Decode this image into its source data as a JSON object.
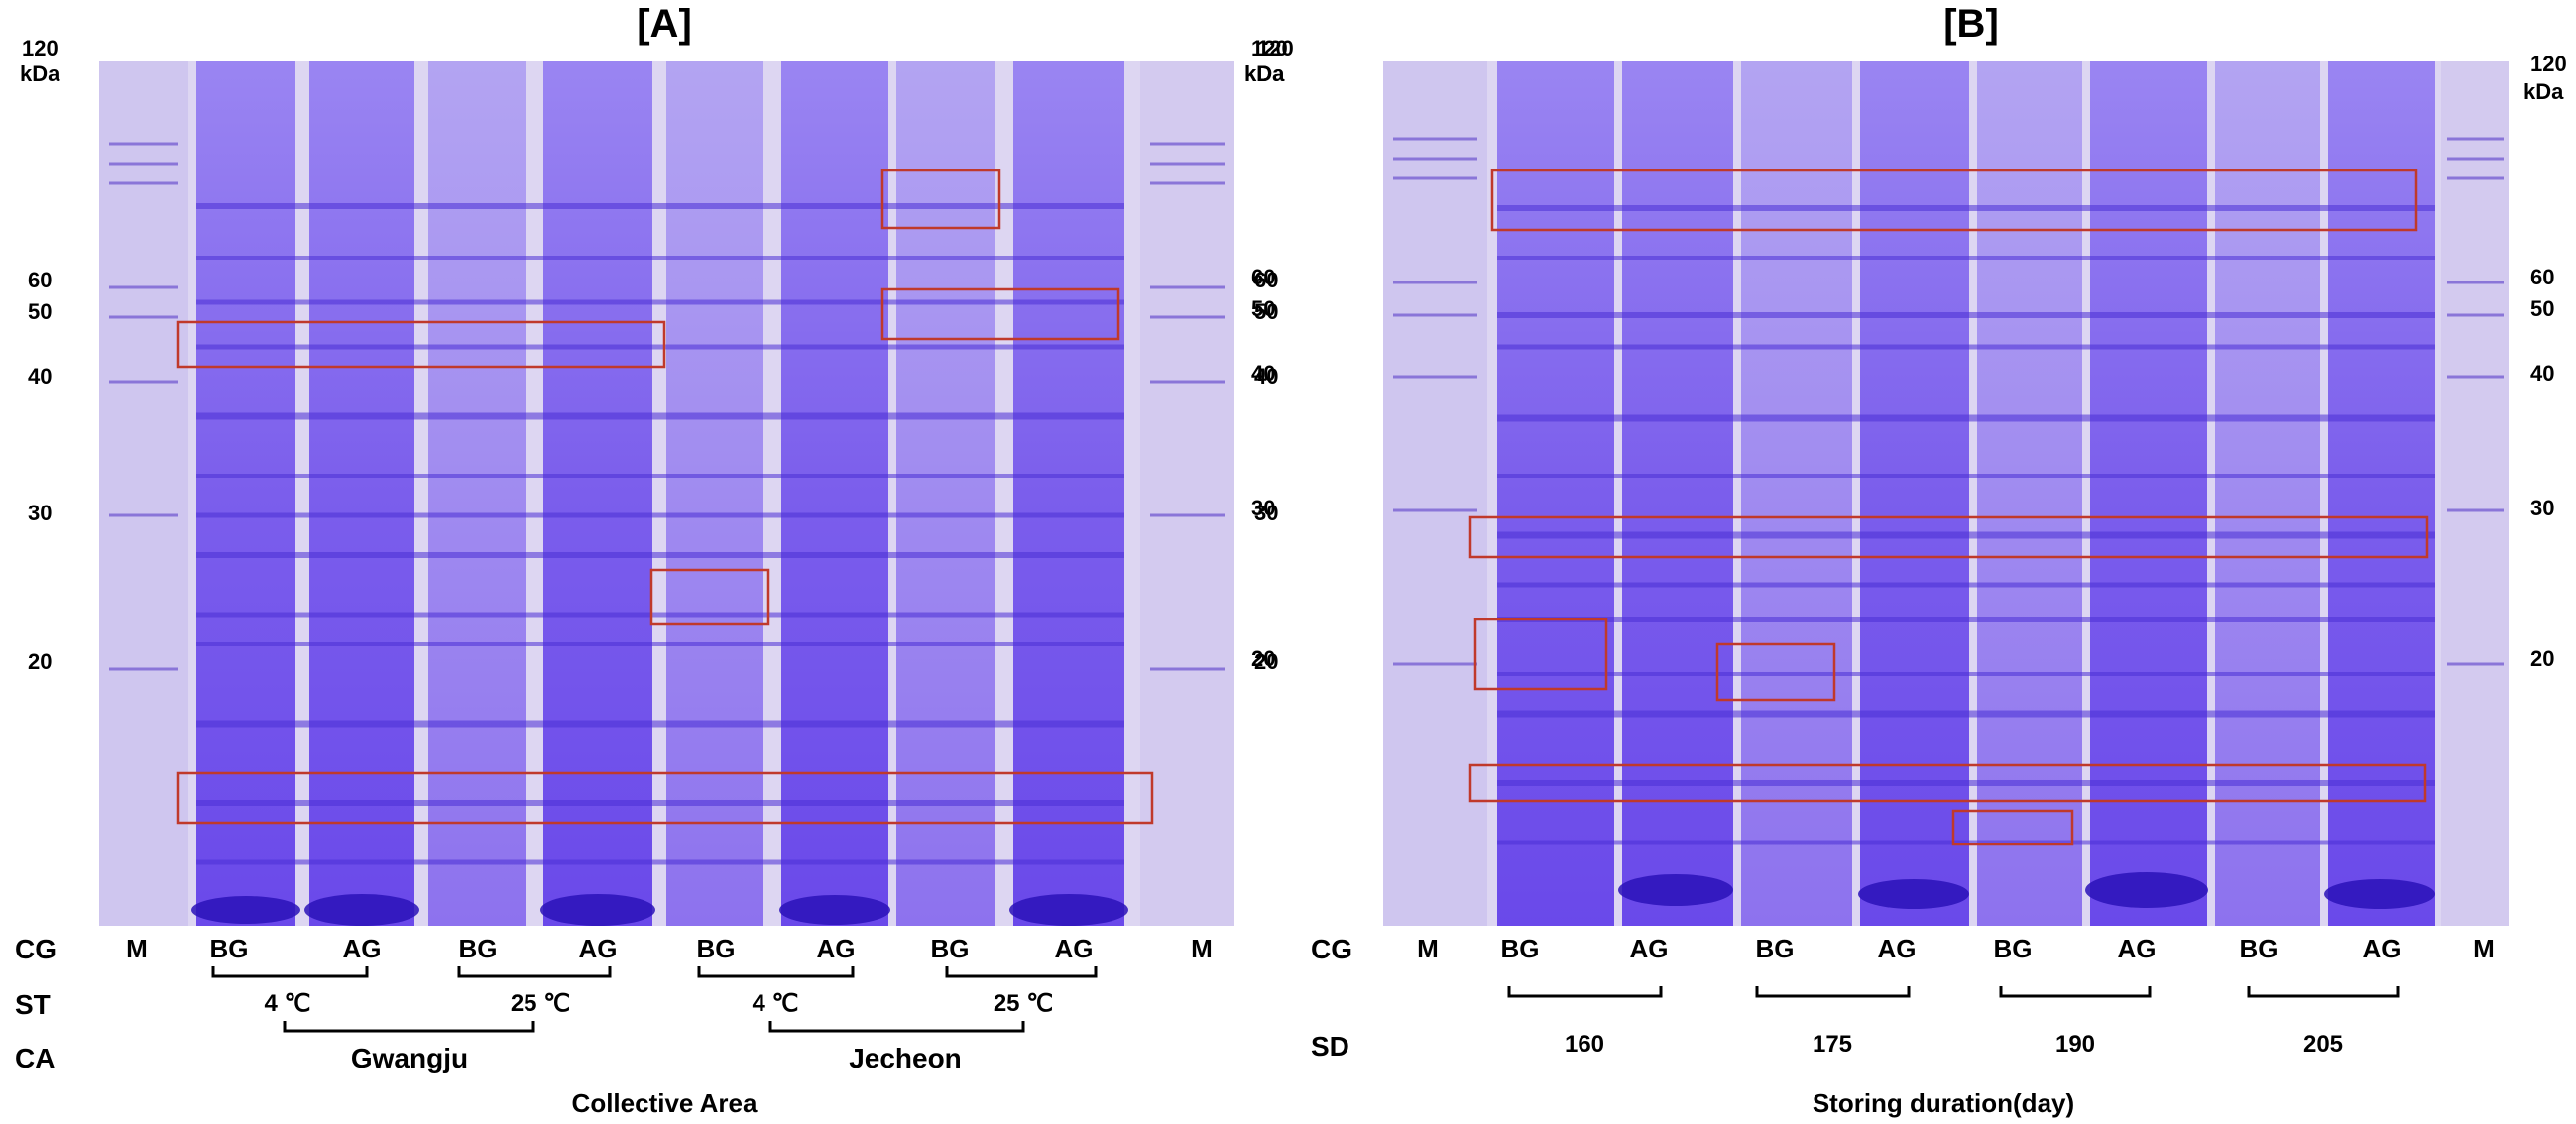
{
  "panels": [
    {
      "title": "[A]",
      "mw_left": [
        "120",
        "kDa",
        "60",
        "50",
        "40",
        "30",
        "20"
      ],
      "mw_right": [
        "120",
        "kDa",
        "60",
        "50",
        "40",
        "30",
        "20"
      ],
      "row_labels": [
        "CG",
        "ST",
        "CA"
      ],
      "lanes": [
        "M",
        "BG",
        "AG",
        "BG",
        "AG",
        "BG",
        "AG",
        "BG",
        "AG",
        "M"
      ],
      "temps": [
        "4 ℃",
        "25 ℃",
        "4 ℃",
        "25 ℃"
      ],
      "areas": [
        "Gwangju",
        "Jecheon"
      ],
      "axis_label": "Collective Area"
    },
    {
      "title": "[B]",
      "mw_left": [
        "120",
        "kDa",
        "60",
        "50",
        "40",
        "30",
        "20"
      ],
      "mw_right": [
        "120",
        "kDa",
        "60",
        "50",
        "40",
        "30",
        "20"
      ],
      "row_labels": [
        "CG",
        "SD"
      ],
      "lanes": [
        "M",
        "BG",
        "AG",
        "BG",
        "AG",
        "BG",
        "AG",
        "BG",
        "AG",
        "M"
      ],
      "days": [
        "160",
        "175",
        "190",
        "205"
      ],
      "axis_label": "Storing duration(day)"
    }
  ],
  "colors": {
    "gel_background": "#ddd6f2",
    "lane_stain": "#7a5cf0",
    "band": "#4a2fd6",
    "box_outline": "#c0392b"
  }
}
